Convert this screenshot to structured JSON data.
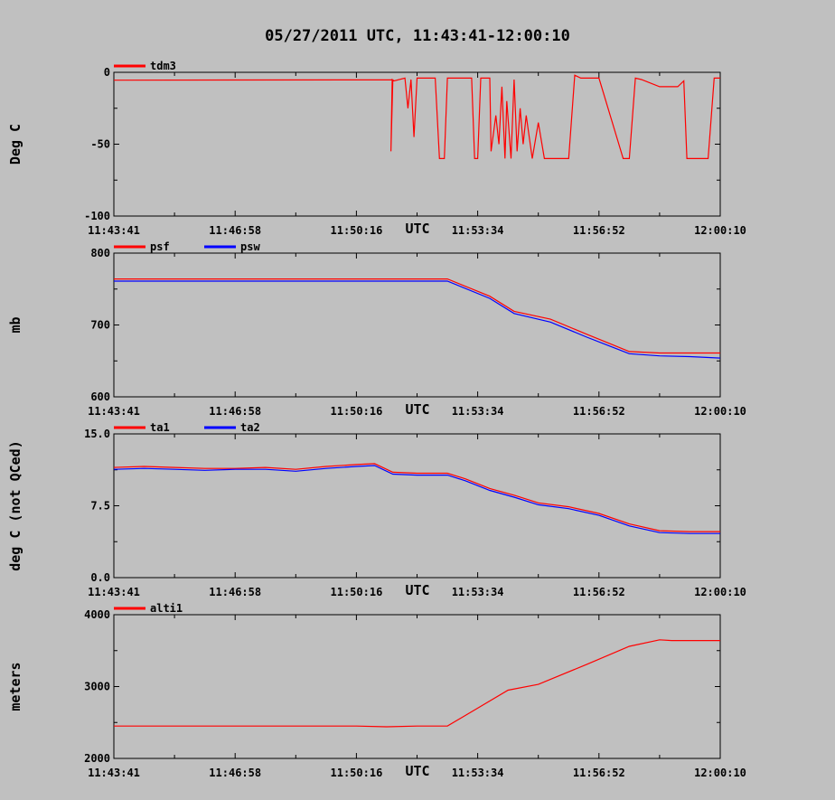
{
  "title": "05/27/2011  UTC, 11:43:41-12:00:10",
  "x_ticks": [
    "11:43:41",
    "11:46:58",
    "11:50:16",
    "11:53:34",
    "11:56:52",
    "12:00:10"
  ],
  "x_unit": "UTC",
  "colors": {
    "red": "#ff0000",
    "blue": "#0000ff",
    "background": "#c0c0c0",
    "axis": "#000000"
  },
  "chart_data": [
    {
      "type": "line",
      "ylabel": "Deg C",
      "ylim": [
        -100,
        0
      ],
      "y_ticks": [
        "0",
        "-50",
        "-100"
      ],
      "grid": false,
      "legend": "top-left",
      "x": [
        0,
        0.46,
        0.457,
        0.459,
        0.462,
        0.48,
        0.485,
        0.49,
        0.495,
        0.5,
        0.53,
        0.537,
        0.545,
        0.55,
        0.59,
        0.595,
        0.6,
        0.605,
        0.61,
        0.62,
        0.622,
        0.63,
        0.635,
        0.64,
        0.645,
        0.648,
        0.655,
        0.66,
        0.665,
        0.67,
        0.675,
        0.68,
        0.69,
        0.7,
        0.71,
        0.75,
        0.76,
        0.77,
        0.78,
        0.79,
        0.8,
        0.84,
        0.85,
        0.86,
        0.87,
        0.9,
        0.93,
        0.94,
        0.945,
        0.95,
        0.96,
        0.98,
        0.99,
        1.0
      ],
      "series": [
        {
          "name": "tdm3",
          "color": "#ff0000",
          "values": [
            -5.5,
            -5.2,
            -55,
            -5,
            -6,
            -4,
            -25,
            -5,
            -45,
            -4,
            -4,
            -60,
            -60,
            -4,
            -4,
            -60,
            -60,
            -4,
            -4,
            -4,
            -55,
            -30,
            -50,
            -10,
            -60,
            -20,
            -60,
            -5,
            -55,
            -25,
            -50,
            -30,
            -60,
            -35,
            -60,
            -60,
            -2,
            -4,
            -4,
            -4,
            -4,
            -60,
            -60,
            -4,
            -5,
            -10,
            -10,
            -6,
            -60,
            -60,
            -60,
            -60,
            -4,
            -4
          ]
        }
      ]
    },
    {
      "type": "line",
      "ylabel": "mb",
      "ylim": [
        600,
        800
      ],
      "y_ticks": [
        "800",
        "700",
        "600"
      ],
      "grid": false,
      "legend": "top-left",
      "x": [
        0,
        0.2,
        0.4,
        0.55,
        0.62,
        0.66,
        0.72,
        0.78,
        0.85,
        0.9,
        0.95,
        1.0
      ],
      "series": [
        {
          "name": "psf",
          "color": "#ff0000",
          "values": [
            764,
            764,
            764,
            764,
            740,
            719,
            708,
            687,
            663,
            661,
            661,
            661
          ]
        },
        {
          "name": "psw",
          "color": "#0000ff",
          "values": [
            761,
            761,
            761,
            761,
            737,
            716,
            704,
            683,
            660,
            657,
            656,
            654
          ]
        }
      ]
    },
    {
      "type": "line",
      "ylabel": "deg C (not QCed)",
      "ylim": [
        0,
        15
      ],
      "y_ticks": [
        "15.0",
        "7.5",
        "0.0"
      ],
      "grid": false,
      "legend": "top-left",
      "x": [
        0,
        0.05,
        0.1,
        0.15,
        0.2,
        0.25,
        0.3,
        0.35,
        0.4,
        0.43,
        0.46,
        0.5,
        0.55,
        0.58,
        0.62,
        0.66,
        0.7,
        0.75,
        0.8,
        0.85,
        0.9,
        0.95,
        1.0
      ],
      "series": [
        {
          "name": "ta1",
          "color": "#ff0000",
          "values": [
            11.5,
            11.6,
            11.5,
            11.4,
            11.4,
            11.5,
            11.3,
            11.6,
            11.8,
            11.9,
            11.0,
            10.9,
            10.9,
            10.3,
            9.3,
            8.6,
            7.8,
            7.4,
            6.7,
            5.6,
            4.9,
            4.8,
            4.8
          ]
        },
        {
          "name": "ta2",
          "color": "#0000ff",
          "values": [
            11.3,
            11.4,
            11.3,
            11.2,
            11.3,
            11.3,
            11.1,
            11.4,
            11.6,
            11.7,
            10.8,
            10.7,
            10.7,
            10.1,
            9.1,
            8.4,
            7.6,
            7.2,
            6.5,
            5.4,
            4.7,
            4.6,
            4.6
          ]
        }
      ]
    },
    {
      "type": "line",
      "ylabel": "meters",
      "ylim": [
        2000,
        4000
      ],
      "y_ticks": [
        "4000",
        "3000",
        "2000"
      ],
      "grid": false,
      "legend": "top-left",
      "x": [
        0,
        0.2,
        0.4,
        0.45,
        0.5,
        0.55,
        0.6,
        0.65,
        0.7,
        0.78,
        0.85,
        0.9,
        0.92,
        0.95,
        1.0
      ],
      "series": [
        {
          "name": "alti1",
          "color": "#ff0000",
          "values": [
            2450,
            2450,
            2450,
            2440,
            2450,
            2450,
            2700,
            2950,
            3030,
            3310,
            3560,
            3650,
            3640,
            3640,
            3640
          ]
        }
      ]
    }
  ]
}
